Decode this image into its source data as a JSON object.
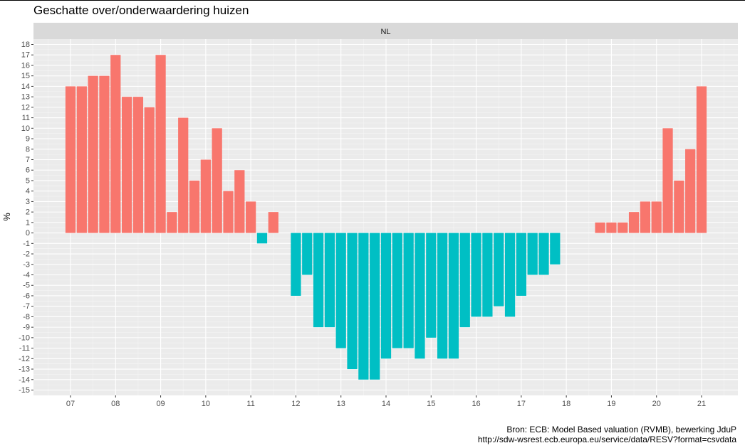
{
  "chart_data": {
    "type": "bar",
    "title": "Geschatte over/onderwaardering huizen",
    "facet": "NL",
    "xlabel": "",
    "ylabel": "%",
    "ylim": [
      -15,
      18
    ],
    "yticks": [
      18,
      17,
      16,
      15,
      14,
      13,
      12,
      11,
      10,
      9,
      8,
      7,
      6,
      5,
      4,
      3,
      2,
      1,
      0,
      -1,
      -2,
      -3,
      -4,
      -5,
      -6,
      -7,
      -8,
      -9,
      -10,
      -11,
      -12,
      -13,
      -14,
      -15
    ],
    "xticks": [
      "07",
      "08",
      "09",
      "10",
      "11",
      "12",
      "13",
      "14",
      "15",
      "16",
      "17",
      "18",
      "19",
      "20",
      "21"
    ],
    "grid": true,
    "x_start_year": 2007,
    "x_end_year": 2021,
    "x_step_years": 0.25,
    "positive_color": "#F8766D",
    "negative_color": "#00BFC4",
    "values": [
      14,
      14,
      15,
      15,
      17,
      13,
      13,
      12,
      17,
      2,
      11,
      5,
      7,
      10,
      4,
      6,
      3,
      -1,
      2,
      null,
      -6,
      -4,
      -9,
      -9,
      -11,
      -13,
      -14,
      -14,
      -12,
      -11,
      -11,
      -12,
      -10,
      -12,
      -12,
      -9,
      -8,
      -8,
      -7,
      -8,
      -6,
      -4,
      -4,
      -3,
      null,
      null,
      null,
      1,
      1,
      1,
      2,
      3,
      3,
      10,
      5,
      8,
      14
    ]
  },
  "caption": {
    "line1": "Bron: ECB: Model Based valuation (RVMB), bewerking JduP",
    "line2": "http://sdw-wsrest.ecb.europa.eu/service/data/RESV?format=csvdata"
  }
}
